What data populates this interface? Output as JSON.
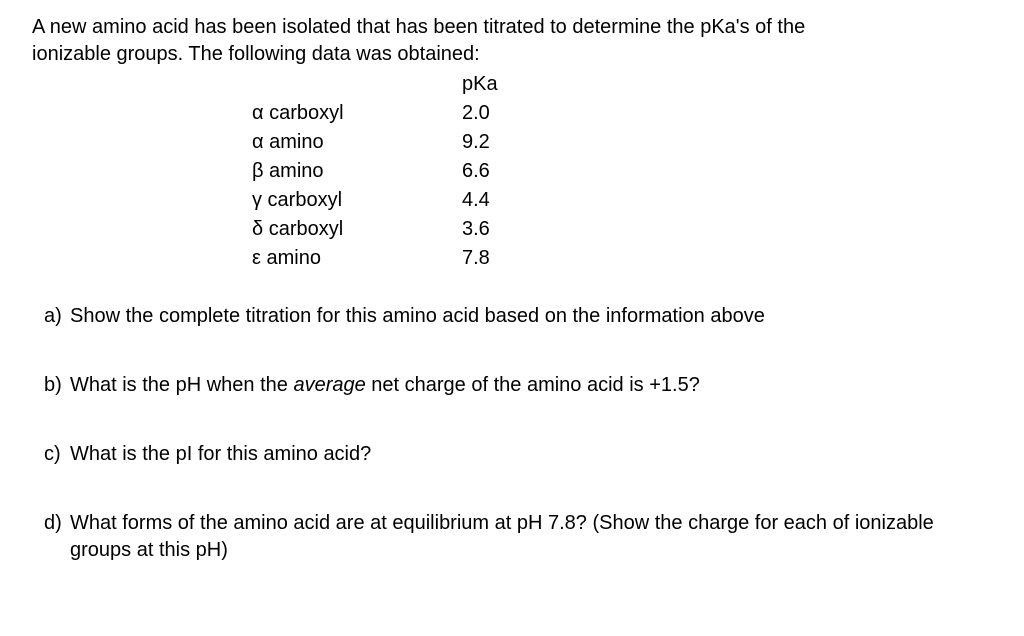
{
  "intro": {
    "line1": "A new amino acid has been isolated that has been titrated to determine the pKa's of the",
    "line2": "ionizable groups.  The following data was obtained:"
  },
  "table": {
    "header_value": "pKa",
    "rows": [
      {
        "label": "α carboxyl",
        "value": "2.0"
      },
      {
        "label": "α amino",
        "value": "9.2"
      },
      {
        "label": "β amino",
        "value": "6.6"
      },
      {
        "label": "γ carboxyl",
        "value": "4.4"
      },
      {
        "label": "δ carboxyl",
        "value": "3.6"
      },
      {
        "label": "ε amino",
        "value": "7.8"
      }
    ]
  },
  "questions": {
    "a": {
      "letter": "a)",
      "text": "Show the complete titration for this amino acid based on the information above"
    },
    "b": {
      "letter": "b)",
      "text_before": "What is the pH when the ",
      "italic": "average",
      "text_after": " net charge of the amino acid is +1.5?"
    },
    "c": {
      "letter": "c)",
      "text": "What is the pI for this amino acid?"
    },
    "d": {
      "letter": "d)",
      "text": "What forms of the amino acid are at equilibrium at pH 7.8? (Show the charge for each of ionizable groups at this pH)"
    }
  }
}
